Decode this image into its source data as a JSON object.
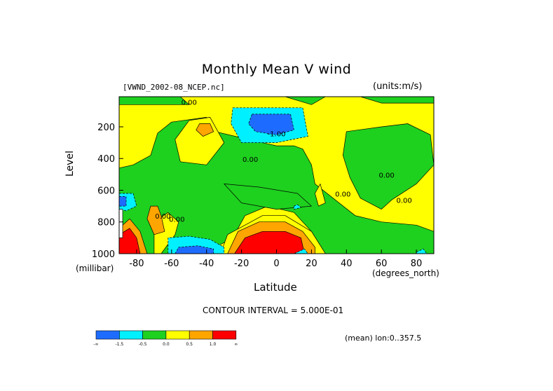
{
  "chart_data": {
    "type": "heatmap",
    "title": "Monthly Mean V wind",
    "dataset_label": "[VWND_2002-08_NCEP.nc]",
    "units_label": "(units:m/s)",
    "xlabel": "Latitude",
    "x_unit": "(degrees_north)",
    "ylabel": "Level",
    "y_unit": "(millibar)",
    "xlim": [
      -90,
      90
    ],
    "ylim": [
      1000,
      10
    ],
    "x_ticks": [
      -80,
      -60,
      -40,
      -20,
      0,
      20,
      40,
      60,
      80
    ],
    "x_tick_labels": [
      "-80",
      "-60",
      "-40",
      "-20",
      "0",
      "20",
      "40",
      "60",
      "80"
    ],
    "y_ticks": [
      200,
      400,
      600,
      800,
      1000
    ],
    "y_tick_labels": [
      "200",
      "400",
      "600",
      "800",
      "1000"
    ],
    "contour_interval_text": "CONTOUR INTERVAL = 5.000E-01",
    "mean_text": "(mean) lon:0..357.5",
    "contour_labels": [
      {
        "text": "0.00",
        "x": -50,
        "y": 60
      },
      {
        "text": "-1.00",
        "x": 0,
        "y": 260
      },
      {
        "text": "0.00",
        "x": -65,
        "y": 780
      },
      {
        "text": "0.00",
        "x": -57,
        "y": 800
      },
      {
        "text": "0.00",
        "x": -15,
        "y": 420
      },
      {
        "text": "0.00",
        "x": 38,
        "y": 640
      },
      {
        "text": "0.00",
        "x": 63,
        "y": 520
      },
      {
        "text": "0.00",
        "x": 73,
        "y": 680
      }
    ],
    "legend": {
      "bins": [
        {
          "color": "#1e6cff",
          "range": "< -1.5"
        },
        {
          "color": "#00f0ff",
          "range": "-1.5 to -0.5"
        },
        {
          "color": "#1ed11e",
          "range": "-0.5 to 0.0"
        },
        {
          "color": "#ffff00",
          "range": "0.0 to 0.5"
        },
        {
          "color": "#ffa500",
          "range": "0.5 to 1.0"
        },
        {
          "color": "#ff0000",
          "range": "> 1.0"
        }
      ],
      "tick_labels": [
        "-∞",
        "-1.5",
        "-0.5",
        "0.0",
        "0.5",
        "1.0",
        "∞"
      ]
    },
    "base_fill": "#ffff00",
    "regions": [
      {
        "level": "green",
        "points": [
          [
            -90,
            10
          ],
          [
            90,
            10
          ],
          [
            90,
            50
          ],
          [
            60,
            50
          ],
          [
            48,
            10
          ],
          [
            28,
            10
          ],
          [
            20,
            60
          ],
          [
            5,
            10
          ],
          [
            -55,
            10
          ],
          [
            -50,
            60
          ],
          [
            -90,
            60
          ]
        ]
      },
      {
        "level": "green",
        "points": [
          [
            -12,
            290
          ],
          [
            -35,
            230
          ],
          [
            -40,
            140
          ],
          [
            -60,
            170
          ],
          [
            -68,
            240
          ],
          [
            -72,
            380
          ],
          [
            -82,
            440
          ],
          [
            -90,
            460
          ],
          [
            -90,
            1000
          ],
          [
            -55,
            1000
          ],
          [
            -35,
            960
          ],
          [
            -25,
            900
          ],
          [
            -18,
            760
          ],
          [
            -5,
            700
          ],
          [
            10,
            740
          ],
          [
            20,
            860
          ],
          [
            28,
            1000
          ],
          [
            90,
            1000
          ],
          [
            90,
            860
          ],
          [
            80,
            820
          ],
          [
            60,
            800
          ],
          [
            45,
            760
          ],
          [
            22,
            560
          ],
          [
            20,
            440
          ],
          [
            15,
            340
          ],
          [
            10,
            320
          ],
          [
            0,
            320
          ]
        ]
      },
      {
        "level": "green",
        "points": [
          [
            40,
            230
          ],
          [
            60,
            200
          ],
          [
            75,
            180
          ],
          [
            88,
            250
          ],
          [
            90,
            440
          ],
          [
            80,
            560
          ],
          [
            66,
            660
          ],
          [
            60,
            720
          ],
          [
            48,
            650
          ],
          [
            42,
            520
          ],
          [
            38,
            380
          ]
        ]
      },
      {
        "level": "green",
        "points": [
          [
            -30,
            560
          ],
          [
            -10,
            580
          ],
          [
            12,
            620
          ],
          [
            20,
            700
          ],
          [
            0,
            720
          ],
          [
            -20,
            680
          ]
        ]
      },
      {
        "level": "yellow",
        "points": [
          [
            -70,
            1000
          ],
          [
            -70,
            800
          ],
          [
            -62,
            740
          ],
          [
            -56,
            800
          ],
          [
            -58,
            880
          ],
          [
            -66,
            1000
          ]
        ]
      },
      {
        "level": "yellow",
        "points": [
          [
            -50,
            160
          ],
          [
            -38,
            140
          ],
          [
            -30,
            300
          ],
          [
            -40,
            440
          ],
          [
            -55,
            420
          ],
          [
            -58,
            280
          ]
        ]
      },
      {
        "level": "yellow",
        "points": [
          [
            25,
            560
          ],
          [
            28,
            680
          ],
          [
            24,
            700
          ],
          [
            22,
            620
          ]
        ]
      },
      {
        "level": "yellow",
        "points": [
          [
            -28,
            880
          ],
          [
            -8,
            760
          ],
          [
            5,
            760
          ],
          [
            20,
            860
          ],
          [
            28,
            1000
          ],
          [
            -32,
            1000
          ]
        ]
      },
      {
        "level": "orange",
        "points": [
          [
            -44,
            180
          ],
          [
            -38,
            180
          ],
          [
            -36,
            230
          ],
          [
            -42,
            260
          ],
          [
            -46,
            220
          ]
        ]
      },
      {
        "level": "orange",
        "points": [
          [
            -72,
            700
          ],
          [
            -68,
            700
          ],
          [
            -66,
            760
          ],
          [
            -64,
            860
          ],
          [
            -70,
            880
          ],
          [
            -74,
            780
          ]
        ]
      },
      {
        "level": "orange",
        "points": [
          [
            -28,
            1000
          ],
          [
            -22,
            860
          ],
          [
            -10,
            800
          ],
          [
            5,
            800
          ],
          [
            15,
            860
          ],
          [
            22,
            960
          ],
          [
            22,
            1000
          ]
        ]
      },
      {
        "level": "red",
        "points": [
          [
            -24,
            1000
          ],
          [
            -18,
            900
          ],
          [
            -8,
            860
          ],
          [
            5,
            860
          ],
          [
            14,
            900
          ],
          [
            16,
            1000
          ]
        ]
      },
      {
        "level": "cyan",
        "points": [
          [
            -25,
            80
          ],
          [
            15,
            80
          ],
          [
            18,
            260
          ],
          [
            0,
            300
          ],
          [
            -20,
            300
          ],
          [
            -26,
            180
          ]
        ]
      },
      {
        "level": "blue",
        "points": [
          [
            -14,
            120
          ],
          [
            8,
            120
          ],
          [
            10,
            220
          ],
          [
            0,
            250
          ],
          [
            -12,
            230
          ],
          [
            -16,
            180
          ]
        ]
      },
      {
        "level": "cyan",
        "points": [
          [
            -62,
            1000
          ],
          [
            -62,
            900
          ],
          [
            -50,
            890
          ],
          [
            -38,
            910
          ],
          [
            -30,
            960
          ],
          [
            -30,
            1000
          ]
        ]
      },
      {
        "level": "blue",
        "points": [
          [
            -58,
            1000
          ],
          [
            -56,
            960
          ],
          [
            -45,
            950
          ],
          [
            -36,
            970
          ],
          [
            -36,
            1000
          ]
        ]
      },
      {
        "level": "cyan",
        "points": [
          [
            -90,
            620
          ],
          [
            -82,
            620
          ],
          [
            -80,
            700
          ],
          [
            -86,
            730
          ],
          [
            -90,
            720
          ]
        ]
      },
      {
        "level": "blue",
        "points": [
          [
            -90,
            640
          ],
          [
            -86,
            640
          ],
          [
            -86,
            700
          ],
          [
            -90,
            700
          ]
        ]
      },
      {
        "level": "orange",
        "points": [
          [
            -90,
            840
          ],
          [
            -84,
            780
          ],
          [
            -78,
            860
          ],
          [
            -74,
            1000
          ],
          [
            -90,
            1000
          ]
        ]
      },
      {
        "level": "red",
        "points": [
          [
            -90,
            880
          ],
          [
            -84,
            840
          ],
          [
            -80,
            900
          ],
          [
            -78,
            1000
          ],
          [
            -90,
            1000
          ]
        ]
      },
      {
        "level": "white",
        "points": [
          [
            -90,
            720
          ],
          [
            -88,
            720
          ],
          [
            -88,
            900
          ],
          [
            -90,
            900
          ]
        ]
      },
      {
        "level": "cyan",
        "points": [
          [
            12,
            990
          ],
          [
            16,
            970
          ],
          [
            18,
            1000
          ],
          [
            10,
            1000
          ]
        ]
      },
      {
        "level": "cyan",
        "points": [
          [
            80,
            990
          ],
          [
            84,
            970
          ],
          [
            86,
            1000
          ],
          [
            80,
            1000
          ]
        ]
      },
      {
        "level": "cyan",
        "points": [
          [
            10,
            700
          ],
          [
            12,
            690
          ],
          [
            14,
            710
          ],
          [
            10,
            720
          ]
        ]
      }
    ],
    "grid": false
  }
}
